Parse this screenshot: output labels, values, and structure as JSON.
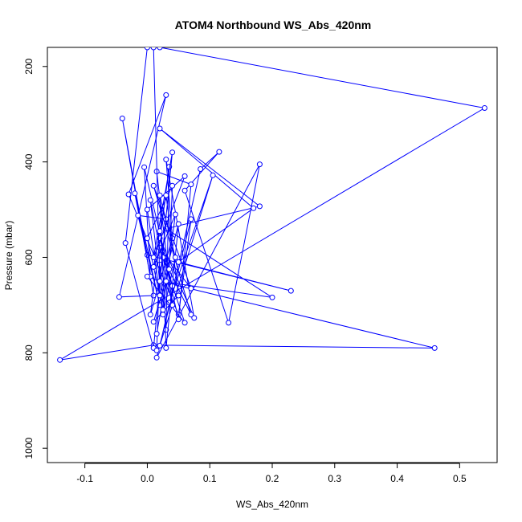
{
  "chart_data": {
    "type": "line",
    "title": "ATOM4 Northbound WS_Abs_420nm",
    "xlabel": "WS_Abs_420nm",
    "ylabel": "Pressure (mbar)",
    "xlim": [
      -0.16,
      0.56
    ],
    "ylim": [
      1030,
      160
    ],
    "y_axis_inverted": true,
    "x_ticks": [
      -0.1,
      0.0,
      0.1,
      0.2,
      0.3,
      0.4,
      0.5
    ],
    "x_tick_labels": [
      "-0.1",
      "0.0",
      "0.1",
      "0.2",
      "0.3",
      "0.4",
      "0.5"
    ],
    "y_ticks": [
      200,
      400,
      600,
      800,
      1000
    ],
    "y_tick_labels": [
      "200",
      "400",
      "600",
      "800",
      "1000"
    ],
    "grid": false,
    "legend": "none",
    "series_color": "#0000ff",
    "marker": "open-circle",
    "series": [
      {
        "points": [
          [
            0.02,
            160
          ],
          [
            0.54,
            287
          ],
          [
            -0.14,
            815
          ],
          [
            0.01,
            784
          ],
          [
            0.46,
            790
          ],
          [
            0.02,
            650
          ],
          [
            0.2,
            684
          ],
          [
            0.03,
            540
          ],
          [
            0.18,
            493
          ],
          [
            0.02,
            330
          ],
          [
            0.17,
            497
          ],
          [
            0.05,
            610
          ],
          [
            0.23,
            670
          ],
          [
            0.0,
            595
          ],
          [
            -0.04,
            309
          ],
          [
            0.01,
            680
          ],
          [
            -0.045,
            683
          ],
          [
            0.03,
            260
          ],
          [
            -0.03,
            468
          ],
          [
            0.05,
            720
          ],
          [
            0.07,
            520
          ],
          [
            0.015,
            810
          ],
          [
            0.18,
            405
          ],
          [
            0.13,
            737
          ],
          [
            0.06,
            460
          ],
          [
            0.115,
            379
          ],
          [
            0.085,
            415
          ],
          [
            0.02,
            785
          ],
          [
            0.105,
            428
          ],
          [
            0.035,
            695
          ]
        ]
      },
      {
        "points": [
          [
            0.0,
            160
          ],
          [
            -0.035,
            570
          ],
          [
            0.01,
            790
          ],
          [
            0.03,
            520
          ],
          [
            -0.015,
            512
          ],
          [
            0.02,
            700
          ],
          [
            -0.02,
            466
          ],
          [
            0.005,
            640
          ],
          [
            -0.005,
            411
          ],
          [
            0.04,
            660
          ],
          [
            0.0,
            640
          ],
          [
            0.06,
            737
          ],
          [
            0.02,
            580
          ],
          [
            0.07,
            665
          ],
          [
            0.01,
            450
          ],
          [
            0.07,
            720
          ],
          [
            0.025,
            600
          ],
          [
            0.04,
            700
          ],
          [
            0.015,
            420
          ],
          [
            0.07,
            447
          ],
          [
            0.05,
            730
          ],
          [
            0.02,
            560
          ],
          [
            0.075,
            727
          ],
          [
            0.03,
            395
          ],
          [
            0.04,
            560
          ],
          [
            0.005,
            720
          ],
          [
            0.035,
            410
          ],
          [
            0.03,
            752
          ],
          [
            0.02,
            615
          ],
          [
            0.015,
            795
          ]
        ]
      },
      {
        "points": [
          [
            0.01,
            160
          ],
          [
            0.02,
            650
          ],
          [
            0.04,
            380
          ],
          [
            0.01,
            600
          ],
          [
            0.06,
            430
          ],
          [
            0.0,
            500
          ],
          [
            0.025,
            720
          ],
          [
            0.045,
            600
          ],
          [
            0.02,
            470
          ],
          [
            0.03,
            790
          ],
          [
            0.05,
            530
          ],
          [
            0.02,
            680
          ],
          [
            0.0,
            560
          ],
          [
            0.04,
            450
          ],
          [
            0.035,
            625
          ],
          [
            0.01,
            735
          ],
          [
            0.05,
            680
          ],
          [
            0.03,
            470
          ],
          [
            0.02,
            545
          ],
          [
            0.01,
            620
          ],
          [
            0.045,
            510
          ],
          [
            0.025,
            710
          ],
          [
            0.005,
            480
          ],
          [
            0.03,
            650
          ],
          [
            0.015,
            760
          ]
        ]
      }
    ]
  }
}
